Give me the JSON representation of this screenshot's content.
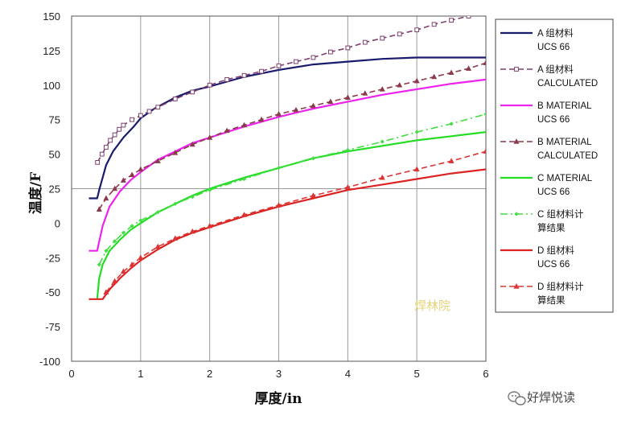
{
  "chart_data": {
    "type": "line",
    "xlabel": "厚度/in",
    "ylabel": "温度/F",
    "xlim": [
      0,
      6
    ],
    "ylim": [
      -100,
      150
    ],
    "xticks": [
      0,
      1,
      2,
      3,
      4,
      5,
      6
    ],
    "yticks": [
      -100,
      -75,
      -50,
      -25,
      0,
      25,
      50,
      75,
      100,
      125,
      150
    ],
    "grid": "partial",
    "legend_position": "right",
    "series": [
      {
        "name": "A 组材料 UCS 66",
        "legend_lines": [
          "A 组材料",
          "UCS 66"
        ],
        "color": "#1a1a6e",
        "style": "solid",
        "marker": "none",
        "x": [
          0.25,
          0.37,
          0.4,
          0.5,
          0.6,
          0.75,
          0.9,
          1.0,
          1.2,
          1.5,
          1.75,
          2.0,
          2.5,
          3.0,
          3.5,
          4.0,
          4.5,
          5.0,
          5.5,
          6.0
        ],
        "y": [
          18,
          18,
          24,
          42,
          52,
          62,
          70,
          76,
          83,
          91,
          96,
          99,
          106,
          111,
          115,
          117,
          119,
          120,
          120,
          120
        ]
      },
      {
        "name": "A 组材料 CALCULATED",
        "legend_lines": [
          "A 组材料",
          "CALCULATED"
        ],
        "color": "#7d3f6e",
        "style": "dashed",
        "marker": "square",
        "x": [
          0.375,
          0.44,
          0.5,
          0.56,
          0.625,
          0.69,
          0.75,
          0.875,
          1.0,
          1.125,
          1.25,
          1.5,
          1.75,
          2.0,
          2.25,
          2.5,
          2.75,
          3.0,
          3.25,
          3.5,
          3.75,
          4.0,
          4.25,
          4.5,
          4.75,
          5.0,
          5.25,
          5.5,
          5.75
        ],
        "y": [
          44,
          50,
          55,
          60,
          64,
          68,
          71,
          75,
          78,
          81,
          84,
          90,
          95,
          100,
          104,
          107,
          110,
          114,
          117,
          120,
          124,
          127,
          131,
          134,
          137,
          140,
          144,
          147,
          150
        ]
      },
      {
        "name": "B MATERIAL UCS 66",
        "legend_lines": [
          "B MATERIAL",
          "UCS 66"
        ],
        "color": "#ee22ee",
        "style": "solid",
        "marker": "none",
        "x": [
          0.25,
          0.37,
          0.45,
          0.55,
          0.7,
          0.85,
          1.0,
          1.25,
          1.5,
          1.75,
          2.0,
          2.5,
          3.0,
          3.5,
          4.0,
          4.5,
          5.0,
          5.5,
          6.0
        ],
        "y": [
          -20,
          -20,
          -2,
          12,
          23,
          31,
          37,
          46,
          52,
          58,
          62,
          70,
          77,
          83,
          88,
          93,
          97,
          101,
          104
        ]
      },
      {
        "name": "B MATERIAL CALCULATED",
        "legend_lines": [
          "B MATERIAL",
          "CALCULATED"
        ],
        "color": "#8a3a4a",
        "style": "dashed",
        "marker": "triangle",
        "x": [
          0.4,
          0.5,
          0.625,
          0.75,
          0.875,
          1.0,
          1.25,
          1.5,
          1.75,
          2.0,
          2.25,
          2.5,
          2.75,
          3.0,
          3.25,
          3.5,
          3.75,
          4.0,
          4.25,
          4.5,
          4.75,
          5.0,
          5.25,
          5.5,
          5.75,
          6.0
        ],
        "y": [
          10,
          18,
          25,
          31,
          35,
          39,
          45,
          51,
          57,
          62,
          67,
          71,
          75,
          79,
          82,
          85,
          88,
          91,
          94,
          97,
          100,
          103,
          106,
          109,
          112,
          116
        ]
      },
      {
        "name": "C MATERIAL UCS 66",
        "legend_lines": [
          "C MATERIAL",
          "UCS 66"
        ],
        "color": "#22dd22",
        "style": "solid",
        "marker": "none",
        "x": [
          0.37,
          0.4,
          0.45,
          0.55,
          0.7,
          0.85,
          1.0,
          1.25,
          1.5,
          1.75,
          2.0,
          2.5,
          3.0,
          3.5,
          4.0,
          4.5,
          5.0,
          5.5,
          6.0
        ],
        "y": [
          -55,
          -40,
          -30,
          -20,
          -12,
          -5,
          0,
          8,
          14,
          20,
          25,
          33,
          40,
          47,
          52,
          56,
          60,
          63,
          66
        ]
      },
      {
        "name": "C 组材料计算结果",
        "legend_lines": [
          "C 组材料计",
          "算结果"
        ],
        "color": "#44dd44",
        "style": "dashdot",
        "marker": "diamond",
        "x": [
          0.4,
          0.5,
          0.625,
          0.75,
          0.875,
          1.0,
          1.25,
          1.5,
          1.75,
          2.0,
          2.5,
          3.0,
          3.5,
          4.0,
          4.5,
          5.0,
          5.5,
          6.0
        ],
        "y": [
          -30,
          -20,
          -13,
          -7,
          -2,
          2,
          8,
          14,
          19,
          24,
          32,
          40,
          47,
          53,
          59,
          66,
          72,
          79
        ]
      },
      {
        "name": "D 组材料 UCS 66",
        "legend_lines": [
          "D 组材料",
          "UCS 66"
        ],
        "color": "#dd2222",
        "style": "solid",
        "marker": "none",
        "x": [
          0.25,
          0.4,
          0.45,
          0.55,
          0.7,
          0.85,
          1.0,
          1.25,
          1.5,
          1.75,
          2.0,
          2.5,
          3.0,
          3.5,
          4.0,
          4.5,
          5.0,
          5.5,
          6.0
        ],
        "y": [
          -55,
          -55,
          -55,
          -48,
          -40,
          -33,
          -27,
          -19,
          -12,
          -7,
          -3,
          5,
          12,
          18,
          24,
          28,
          32,
          36,
          39
        ]
      },
      {
        "name": "D 组材料计算结果",
        "legend_lines": [
          "D 组材料计",
          "算结果"
        ],
        "color": "#dd3333",
        "style": "dashed",
        "marker": "triangle",
        "x": [
          0.5,
          0.625,
          0.75,
          0.875,
          1.0,
          1.25,
          1.5,
          1.75,
          2.0,
          2.5,
          3.0,
          3.5,
          4.0,
          4.5,
          5.0,
          5.5,
          6.0
        ],
        "y": [
          -50,
          -42,
          -35,
          -30,
          -25,
          -17,
          -11,
          -6,
          -2,
          6,
          13,
          20,
          26,
          33,
          39,
          45,
          52
        ]
      }
    ]
  },
  "watermark": "焊林院",
  "brand": {
    "name": "好焊悦读",
    "icon": "wechat-icon"
  }
}
